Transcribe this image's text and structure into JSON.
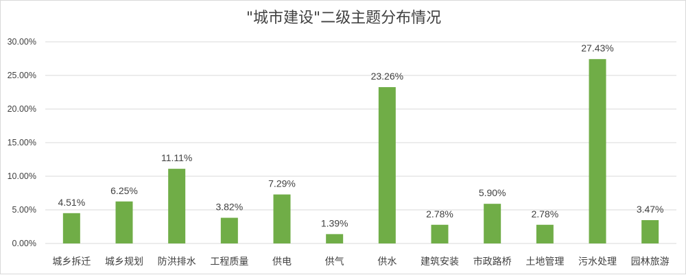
{
  "chart_data": {
    "type": "bar",
    "title": "\"城市建设\"二级主题分布情况",
    "xlabel": "",
    "ylabel": "",
    "categories": [
      "城乡拆迁",
      "城乡规划",
      "防洪排水",
      "工程质量",
      "供电",
      "供气",
      "供水",
      "建筑安装",
      "市政路桥",
      "土地管理",
      "污水处理",
      "园林旅游"
    ],
    "values": [
      4.51,
      6.25,
      11.11,
      3.82,
      7.29,
      1.39,
      23.26,
      2.78,
      5.9,
      2.78,
      27.43,
      3.47
    ],
    "data_labels": [
      "4.51%",
      "6.25%",
      "11.11%",
      "3.82%",
      "7.29%",
      "1.39%",
      "23.26%",
      "2.78%",
      "5.90%",
      "2.78%",
      "27.43%",
      "3.47%"
    ],
    "ylim": [
      0,
      30
    ],
    "y_ticks": [
      0,
      5,
      10,
      15,
      20,
      25,
      30
    ],
    "y_tick_labels": [
      "0.00%",
      "5.00%",
      "10.00%",
      "15.00%",
      "20.00%",
      "25.00%",
      "30.00%"
    ],
    "grid": true,
    "legend": "none",
    "colors": {
      "bar": "#70ad47",
      "grid": "#d9d9d9",
      "text": "#404040"
    }
  }
}
